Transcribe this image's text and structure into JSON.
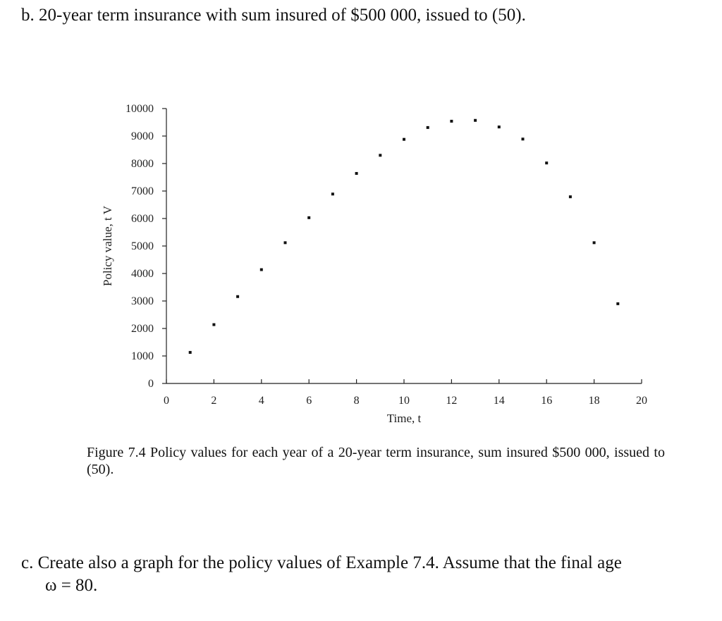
{
  "part_b": {
    "text": "b. 20-year term insurance with sum insured of $500 000, issued to (50)."
  },
  "figure": {
    "caption": "Figure 7.4 Policy values for each year of a 20-year term insurance, sum insured $500 000, issued to (50)."
  },
  "part_c": {
    "line1": "c. Create also a graph for the policy values of Example 7.4.  Assume that the final age",
    "line2": "ω = 80."
  },
  "chart_data": {
    "type": "scatter",
    "xlabel": "Time, t",
    "ylabel": "Policy value,  t V",
    "x_ticks": [
      0,
      2,
      4,
      6,
      8,
      10,
      12,
      14,
      16,
      18,
      20
    ],
    "y_ticks": [
      0,
      1000,
      2000,
      3000,
      4000,
      5000,
      6000,
      7000,
      8000,
      9000,
      10000
    ],
    "xlim": [
      0,
      20
    ],
    "ylim": [
      0,
      10000
    ],
    "grid": false,
    "series": [
      {
        "x": [
          1,
          2,
          3,
          4,
          5,
          6,
          7,
          8,
          9,
          10,
          11,
          12,
          13,
          14,
          15,
          16,
          17,
          18,
          19
        ],
        "y": [
          1130,
          2140,
          3160,
          4140,
          5120,
          6030,
          6890,
          7640,
          8300,
          8880,
          9310,
          9540,
          9570,
          9330,
          8890,
          8020,
          6790,
          5120,
          2900
        ]
      }
    ]
  }
}
